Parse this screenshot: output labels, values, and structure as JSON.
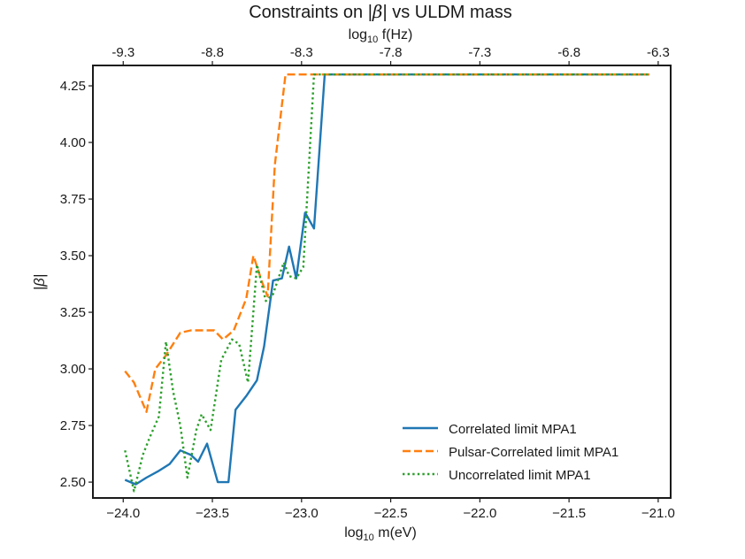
{
  "chart_data": {
    "type": "line",
    "title": "Constraints on |β| vs ULDM mass",
    "title_parts": {
      "prefix": "Constraints on |",
      "symbol": "β",
      "suffix": "| vs ULDM mass"
    },
    "xlabel": "log₁₀ m(eV)",
    "xlabel_parts": {
      "prefix": "log",
      "sub": "10",
      "suffix": " m(eV)"
    },
    "x2label": "log₁₀ f(Hz)",
    "x2label_parts": {
      "prefix": "log",
      "sub": "10",
      "suffix": " f(Hz)"
    },
    "ylabel": "|β|",
    "xlim": [
      -24.17,
      -20.93
    ],
    "ylim": [
      2.43,
      4.34
    ],
    "xticks": [
      -24.0,
      -23.5,
      -23.0,
      -22.5,
      -22.0,
      -21.5,
      -21.0
    ],
    "xtick_labels": [
      "−24.0",
      "−23.5",
      "−23.0",
      "−22.5",
      "−22.0",
      "−21.5",
      "−21.0"
    ],
    "x2ticks": [
      -9.3,
      -8.8,
      -8.3,
      -7.8,
      -7.3,
      -6.8,
      -6.3
    ],
    "x2tick_labels": [
      "-9.3",
      "-8.8",
      "-8.3",
      "-7.8",
      "-7.3",
      "-6.8",
      "-6.3"
    ],
    "x2_offset": 14.7,
    "yticks": [
      2.5,
      2.75,
      3.0,
      3.25,
      3.5,
      3.75,
      4.0,
      4.25
    ],
    "ytick_labels": [
      "2.50",
      "2.75",
      "3.00",
      "3.25",
      "3.50",
      "3.75",
      "4.00",
      "4.25"
    ],
    "grid": false,
    "legend_position": "lower-right",
    "series": [
      {
        "name": "Correlated limit MPA1",
        "color": "#1f77b4",
        "style": "solid",
        "x": [
          -23.99,
          -23.93,
          -23.87,
          -23.8,
          -23.74,
          -23.68,
          -23.62,
          -23.58,
          -23.53,
          -23.47,
          -23.41,
          -23.37,
          -23.31,
          -23.25,
          -23.21,
          -23.16,
          -23.11,
          -23.07,
          -23.03,
          -22.98,
          -22.93,
          -22.87,
          -22.82,
          -22.77,
          -22.72,
          -22.66,
          -22.6,
          -21.05
        ],
        "y": [
          2.51,
          2.49,
          2.52,
          2.55,
          2.58,
          2.64,
          2.62,
          2.59,
          2.67,
          2.5,
          2.5,
          2.82,
          2.88,
          2.95,
          3.1,
          3.39,
          3.4,
          3.54,
          3.4,
          3.69,
          3.62,
          4.3,
          4.3,
          4.3,
          4.3,
          4.3,
          4.3,
          4.3
        ]
      },
      {
        "name": "Pulsar-Correlated limit MPA1",
        "color": "#ff7f0e",
        "style": "dashed",
        "x": [
          -23.99,
          -23.94,
          -23.87,
          -23.82,
          -23.76,
          -23.68,
          -23.62,
          -23.56,
          -23.49,
          -23.44,
          -23.38,
          -23.31,
          -23.27,
          -23.22,
          -23.19,
          -23.15,
          -23.09,
          -21.05
        ],
        "y": [
          2.99,
          2.94,
          2.81,
          3.0,
          3.06,
          3.16,
          3.17,
          3.17,
          3.17,
          3.13,
          3.17,
          3.31,
          3.5,
          3.38,
          3.32,
          3.9,
          4.3,
          4.3
        ]
      },
      {
        "name": "Uncorrelated limit MPA1",
        "color": "#2ca02c",
        "style": "dotted",
        "x": [
          -23.99,
          -23.94,
          -23.89,
          -23.85,
          -23.8,
          -23.76,
          -23.72,
          -23.68,
          -23.64,
          -23.59,
          -23.56,
          -23.51,
          -23.45,
          -23.39,
          -23.35,
          -23.3,
          -23.25,
          -23.2,
          -23.16,
          -23.1,
          -23.07,
          -23.03,
          -22.99,
          -22.93,
          -22.87,
          -22.84,
          -22.78,
          -22.74,
          -22.7,
          -22.66,
          -21.05
        ],
        "y": [
          2.64,
          2.46,
          2.62,
          2.7,
          2.79,
          3.12,
          2.9,
          2.75,
          2.52,
          2.73,
          2.8,
          2.73,
          3.04,
          3.13,
          3.11,
          2.94,
          3.46,
          3.3,
          3.33,
          3.47,
          3.41,
          3.4,
          3.45,
          4.3,
          4.3,
          4.3,
          4.3,
          4.3,
          4.3,
          4.3,
          4.3
        ]
      }
    ]
  }
}
